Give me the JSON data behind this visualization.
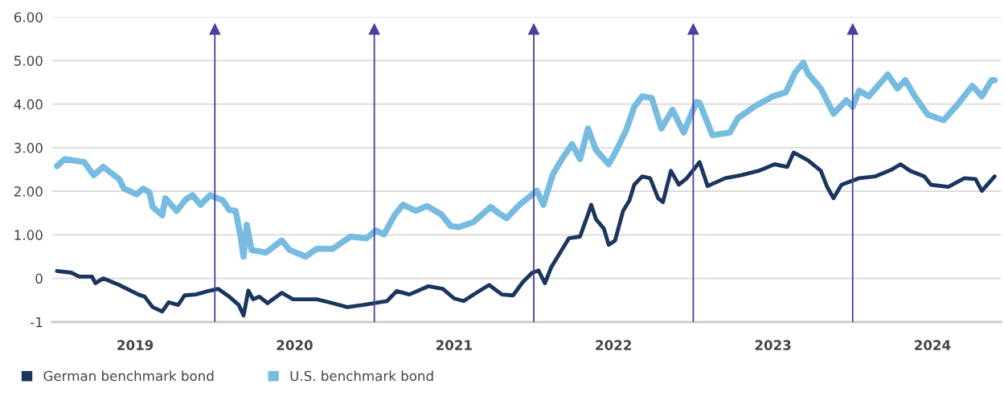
{
  "chart_data": {
    "type": "line",
    "xlim": [
      2018.98,
      2024.93
    ],
    "xticks": [
      {
        "value": 2019.5,
        "label": "2019"
      },
      {
        "value": 2020.5,
        "label": "2020"
      },
      {
        "value": 2021.5,
        "label": "2021"
      },
      {
        "value": 2022.5,
        "label": "2022"
      },
      {
        "value": 2023.5,
        "label": "2023"
      },
      {
        "value": 2024.5,
        "label": "2024"
      }
    ],
    "ylim": [
      -1,
      6
    ],
    "yticks": [
      {
        "value": 6,
        "label": "6.00"
      },
      {
        "value": 5,
        "label": "5.00"
      },
      {
        "value": 4,
        "label": "4.00"
      },
      {
        "value": 3,
        "label": "3.00"
      },
      {
        "value": 2,
        "label": "2.00"
      },
      {
        "value": 1,
        "label": "1.00"
      },
      {
        "value": 0,
        "label": "0"
      },
      {
        "value": -1,
        "label": "-1"
      }
    ],
    "grid": "y",
    "legend": "bottom left",
    "line_style": "solid",
    "ref_lines": [
      {
        "axis": "x",
        "value": 2020.0,
        "color": "#4b3f9e"
      },
      {
        "axis": "x",
        "value": 2021.0,
        "color": "#4b3f9e"
      },
      {
        "axis": "x",
        "value": 2022.0,
        "color": "#4b3f9e"
      },
      {
        "axis": "x",
        "value": 2023.0,
        "color": "#4b3f9e"
      },
      {
        "axis": "x",
        "value": 2024.0,
        "color": "#4b3f9e"
      }
    ],
    "series": [
      {
        "name": "German benchmark bond",
        "color": "#1b355e",
        "x": [
          2019.01,
          2019.1,
          2019.15,
          2019.23,
          2019.25,
          2019.3,
          2019.4,
          2019.52,
          2019.56,
          2019.61,
          2019.67,
          2019.71,
          2019.77,
          2019.81,
          2019.88,
          2019.97,
          2020.02,
          2020.09,
          2020.15,
          2020.18,
          2020.21,
          2020.24,
          2020.28,
          2020.33,
          2020.42,
          2020.49,
          2020.64,
          2020.74,
          2020.83,
          2020.93,
          2021.03,
          2021.08,
          2021.14,
          2021.22,
          2021.34,
          2021.43,
          2021.5,
          2021.56,
          2021.64,
          2021.72,
          2021.8,
          2021.87,
          2021.93,
          2021.99,
          2022.03,
          2022.07,
          2022.11,
          2022.15,
          2022.22,
          2022.29,
          2022.34,
          2022.36,
          2022.39,
          2022.44,
          2022.47,
          2022.51,
          2022.56,
          2022.6,
          2022.63,
          2022.68,
          2022.73,
          2022.78,
          2022.81,
          2022.86,
          2022.91,
          2022.96,
          2023.04,
          2023.09,
          2023.2,
          2023.3,
          2023.41,
          2023.51,
          2023.59,
          2023.63,
          2023.72,
          2023.8,
          2023.84,
          2023.88,
          2023.93,
          2024.04,
          2024.14,
          2024.24,
          2024.3,
          2024.36,
          2024.45,
          2024.49,
          2024.6,
          2024.7,
          2024.77,
          2024.81,
          2024.89
        ],
        "values": [
          0.17,
          0.13,
          0.04,
          0.04,
          -0.11,
          0.0,
          -0.15,
          -0.37,
          -0.42,
          -0.66,
          -0.76,
          -0.55,
          -0.61,
          -0.39,
          -0.37,
          -0.28,
          -0.24,
          -0.42,
          -0.61,
          -0.85,
          -0.28,
          -0.48,
          -0.42,
          -0.57,
          -0.33,
          -0.48,
          -0.48,
          -0.57,
          -0.66,
          -0.61,
          -0.55,
          -0.52,
          -0.29,
          -0.37,
          -0.18,
          -0.24,
          -0.46,
          -0.52,
          -0.33,
          -0.15,
          -0.37,
          -0.39,
          -0.09,
          0.13,
          0.18,
          -0.11,
          0.26,
          0.5,
          0.92,
          0.96,
          1.47,
          1.69,
          1.36,
          1.14,
          0.77,
          0.87,
          1.55,
          1.79,
          2.15,
          2.34,
          2.3,
          1.84,
          1.75,
          2.47,
          2.15,
          2.3,
          2.67,
          2.12,
          2.3,
          2.37,
          2.47,
          2.62,
          2.56,
          2.89,
          2.71,
          2.47,
          2.1,
          1.84,
          2.15,
          2.3,
          2.34,
          2.49,
          2.62,
          2.47,
          2.34,
          2.15,
          2.1,
          2.3,
          2.28,
          2.01,
          2.34
        ]
      },
      {
        "name": "U.S. benchmark bond",
        "color": "#77bce0",
        "x": [
          2019.01,
          2019.06,
          2019.18,
          2019.24,
          2019.3,
          2019.4,
          2019.43,
          2019.51,
          2019.55,
          2019.59,
          2019.61,
          2019.67,
          2019.69,
          2019.76,
          2019.82,
          2019.86,
          2019.91,
          2019.97,
          2020.05,
          2020.09,
          2020.13,
          2020.16,
          2020.18,
          2020.2,
          2020.23,
          2020.32,
          2020.42,
          2020.47,
          2020.57,
          2020.64,
          2020.74,
          2020.85,
          2020.95,
          2021.01,
          2021.06,
          2021.13,
          2021.18,
          2021.26,
          2021.33,
          2021.42,
          2021.48,
          2021.53,
          2021.62,
          2021.73,
          2021.79,
          2021.83,
          2021.91,
          2022.02,
          2022.06,
          2022.12,
          2022.18,
          2022.24,
          2022.29,
          2022.34,
          2022.39,
          2022.47,
          2022.52,
          2022.58,
          2022.63,
          2022.68,
          2022.74,
          2022.8,
          2022.87,
          2022.94,
          2023.02,
          2023.04,
          2023.12,
          2023.23,
          2023.28,
          2023.39,
          2023.5,
          2023.58,
          2023.64,
          2023.69,
          2023.72,
          2023.8,
          2023.88,
          2023.96,
          2024.0,
          2024.04,
          2024.1,
          2024.22,
          2024.28,
          2024.33,
          2024.39,
          2024.47,
          2024.57,
          2024.66,
          2024.75,
          2024.81,
          2024.87,
          2024.89
        ],
        "values": [
          2.58,
          2.74,
          2.67,
          2.37,
          2.56,
          2.28,
          2.06,
          1.93,
          2.06,
          1.97,
          1.64,
          1.45,
          1.84,
          1.55,
          1.82,
          1.91,
          1.69,
          1.91,
          1.79,
          1.57,
          1.55,
          0.99,
          0.5,
          1.23,
          0.65,
          0.59,
          0.87,
          0.65,
          0.5,
          0.68,
          0.68,
          0.96,
          0.92,
          1.1,
          1.01,
          1.47,
          1.69,
          1.55,
          1.66,
          1.47,
          1.2,
          1.18,
          1.29,
          1.64,
          1.47,
          1.38,
          1.69,
          2.01,
          1.69,
          2.39,
          2.76,
          3.08,
          2.74,
          3.44,
          2.95,
          2.62,
          2.95,
          3.41,
          3.94,
          4.18,
          4.14,
          3.44,
          3.87,
          3.35,
          4.05,
          4.03,
          3.29,
          3.35,
          3.68,
          3.96,
          4.18,
          4.27,
          4.73,
          4.95,
          4.7,
          4.36,
          3.78,
          4.09,
          3.94,
          4.31,
          4.18,
          4.68,
          4.36,
          4.55,
          4.18,
          3.76,
          3.63,
          4.0,
          4.42,
          4.18,
          4.55,
          4.55
        ]
      }
    ]
  }
}
